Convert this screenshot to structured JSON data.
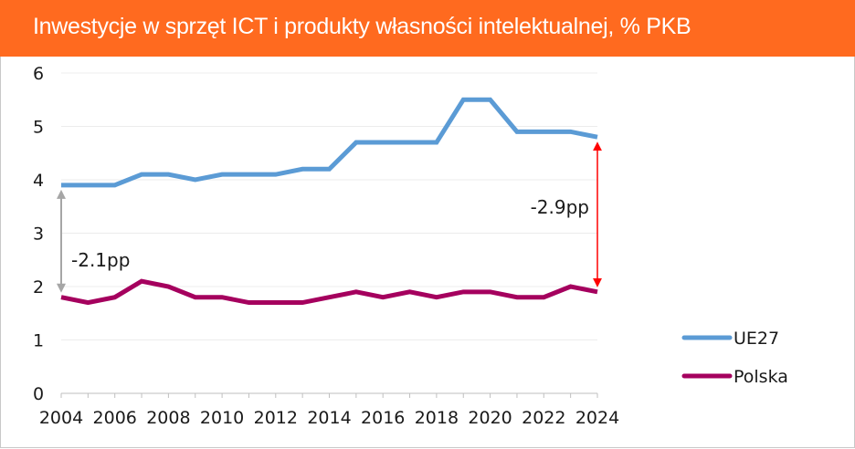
{
  "header": {
    "title": "Inwestycje w sprzęt ICT i produkty własności intelektualnej, % PKB",
    "background_color": "#FF6A1F"
  },
  "chart_data": {
    "type": "line",
    "title": "Inwestycje w sprzęt ICT i produkty własności intelektualnej, % PKB",
    "xlabel": "",
    "ylabel": "",
    "x": [
      2004,
      2005,
      2006,
      2007,
      2008,
      2009,
      2010,
      2011,
      2012,
      2013,
      2014,
      2015,
      2016,
      2017,
      2018,
      2019,
      2020,
      2021,
      2022,
      2023,
      2024
    ],
    "x_tick_labels": [
      "2004",
      "2006",
      "2008",
      "2010",
      "2012",
      "2014",
      "2016",
      "2018",
      "2020",
      "2022",
      "2024"
    ],
    "y_tick_labels": [
      "0",
      "1",
      "2",
      "3",
      "4",
      "5",
      "6"
    ],
    "ylim": [
      0,
      6
    ],
    "xlim": [
      2004,
      2024
    ],
    "grid": true,
    "legend_position": "bottom-right",
    "series": [
      {
        "name": "UE27",
        "color": "#5B9BD5",
        "values": [
          3.9,
          3.9,
          3.9,
          4.1,
          4.1,
          4.0,
          4.1,
          4.1,
          4.1,
          4.2,
          4.2,
          4.7,
          4.7,
          4.7,
          4.7,
          5.5,
          5.5,
          4.9,
          4.9,
          4.9,
          4.8
        ]
      },
      {
        "name": "Polska",
        "color": "#A5005E",
        "values": [
          1.8,
          1.7,
          1.8,
          2.1,
          2.0,
          1.8,
          1.8,
          1.7,
          1.7,
          1.7,
          1.8,
          1.9,
          1.8,
          1.9,
          1.8,
          1.9,
          1.9,
          1.8,
          1.8,
          2.0,
          1.9
        ]
      }
    ],
    "annotations": [
      {
        "label": "-2.1pp",
        "year": 2004,
        "from": 3.9,
        "to": 1.8,
        "color": "#A6A6A6"
      },
      {
        "label": "-2.9pp",
        "year": 2024,
        "from": 4.8,
        "to": 1.9,
        "color": "#FF0000"
      }
    ]
  }
}
